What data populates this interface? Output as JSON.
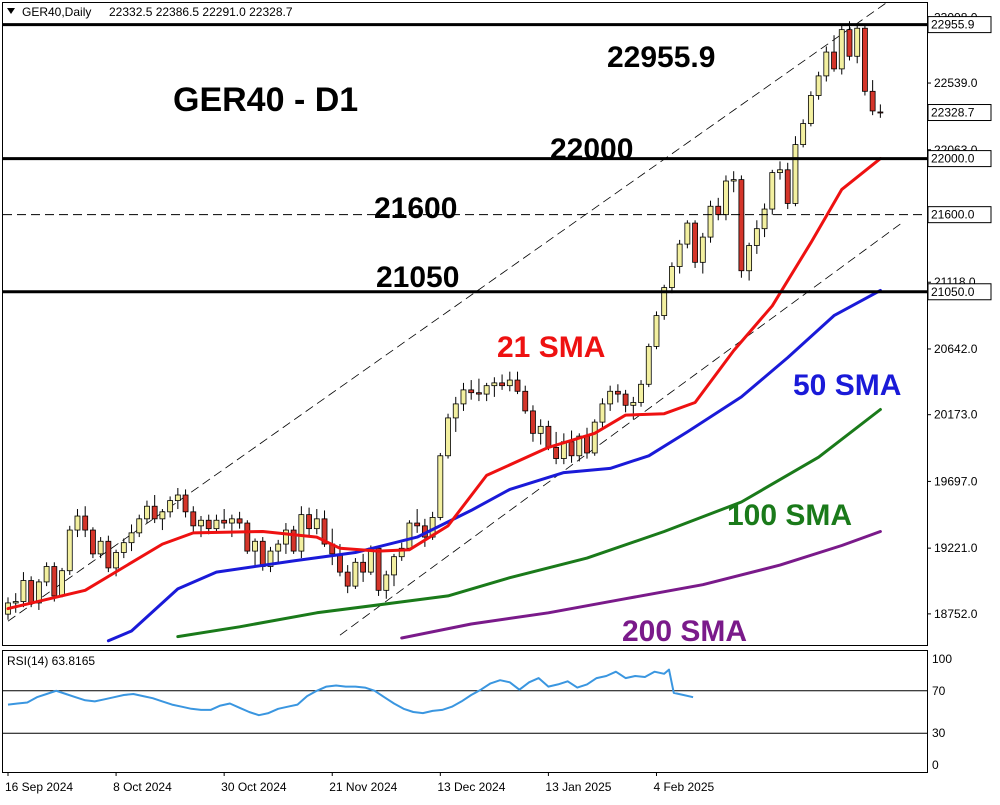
{
  "header": {
    "symbol": "GER40,Daily",
    "ohlc": "22332.5 22386.5 22291.0 22328.7"
  },
  "annotations": {
    "title": "GER40 - D1",
    "level_22955": "22955.9",
    "level_22000": "22000",
    "level_21600": "21600",
    "level_21050": "21050",
    "sma21": "21 SMA",
    "sma50": "50 SMA",
    "sma100": "100 SMA",
    "sma200": "200 SMA"
  },
  "colors": {
    "up": "#f3f0a0",
    "down": "#d4352a",
    "sma21": "#ee1111",
    "sma50": "#1a1ad8",
    "sma100": "#1a7a1a",
    "sma200": "#7a1a8a",
    "rsi": "#3a96e0"
  },
  "chart_data": [
    {
      "type": "candlestick",
      "y_range": [
        18530,
        23110
      ],
      "x_labels": [
        "16 Sep 2024",
        "8 Oct 2024",
        "30 Oct 2024",
        "21 Nov 2024",
        "13 Dec 2024",
        "13 Jan 2025",
        "4 Feb 2025"
      ],
      "y_ticks": [
        "23008.0",
        "22539.0",
        "22063.0",
        "21118.0",
        "20642.0",
        "20173.0",
        "19697.0",
        "19221.0",
        "18752.0"
      ],
      "price_labels": [
        "22955.9",
        "22328.7",
        "22000.0",
        "21600.0",
        "21050.0"
      ],
      "levels": [
        22955.9,
        22000,
        21600,
        21050
      ],
      "candles": [
        [
          18750,
          18870,
          18710,
          18830
        ],
        [
          18830,
          18900,
          18760,
          18840
        ],
        [
          18840,
          19050,
          18800,
          18990
        ],
        [
          18990,
          19020,
          18800,
          18830
        ],
        [
          18830,
          19000,
          18780,
          18980
        ],
        [
          18980,
          19120,
          18950,
          19090
        ],
        [
          19090,
          19120,
          18840,
          18880
        ],
        [
          18880,
          19080,
          18870,
          19060
        ],
        [
          19060,
          19380,
          19030,
          19350
        ],
        [
          19350,
          19500,
          19300,
          19450
        ],
        [
          19450,
          19520,
          19300,
          19350
        ],
        [
          19350,
          19370,
          19150,
          19180
        ],
        [
          19180,
          19300,
          19150,
          19270
        ],
        [
          19270,
          19310,
          19050,
          19080
        ],
        [
          19080,
          19210,
          19020,
          19190
        ],
        [
          19190,
          19290,
          19150,
          19260
        ],
        [
          19260,
          19390,
          19200,
          19330
        ],
        [
          19330,
          19460,
          19300,
          19430
        ],
        [
          19430,
          19560,
          19400,
          19520
        ],
        [
          19520,
          19600,
          19400,
          19430
        ],
        [
          19430,
          19500,
          19350,
          19480
        ],
        [
          19480,
          19590,
          19440,
          19560
        ],
        [
          19560,
          19650,
          19500,
          19600
        ],
        [
          19600,
          19640,
          19440,
          19480
        ],
        [
          19480,
          19520,
          19340,
          19380
        ],
        [
          19380,
          19450,
          19300,
          19420
        ],
        [
          19420,
          19460,
          19320,
          19360
        ],
        [
          19360,
          19460,
          19340,
          19420
        ],
        [
          19420,
          19500,
          19360,
          19400
        ],
        [
          19400,
          19460,
          19300,
          19430
        ],
        [
          19430,
          19480,
          19360,
          19400
        ],
        [
          19400,
          19420,
          19180,
          19200
        ],
        [
          19200,
          19290,
          19100,
          19270
        ],
        [
          19270,
          19300,
          19060,
          19090
        ],
        [
          19090,
          19230,
          19050,
          19200
        ],
        [
          19200,
          19280,
          19120,
          19250
        ],
        [
          19250,
          19400,
          19180,
          19350
        ],
        [
          19350,
          19380,
          19180,
          19200
        ],
        [
          19200,
          19520,
          19150,
          19460
        ],
        [
          19460,
          19510,
          19300,
          19360
        ],
        [
          19360,
          19500,
          19320,
          19430
        ],
        [
          19430,
          19490,
          19230,
          19250
        ],
        [
          19250,
          19360,
          19100,
          19180
        ],
        [
          19180,
          19250,
          19020,
          19050
        ],
        [
          19050,
          19100,
          18900,
          18950
        ],
        [
          18950,
          19150,
          18930,
          19120
        ],
        [
          19120,
          19180,
          18980,
          19050
        ],
        [
          19050,
          19240,
          19030,
          19220
        ],
        [
          19220,
          19240,
          18880,
          18920
        ],
        [
          18920,
          19060,
          18860,
          19030
        ],
        [
          19030,
          19180,
          18950,
          19160
        ],
        [
          19160,
          19260,
          19130,
          19220
        ],
        [
          19220,
          19420,
          19200,
          19400
        ],
        [
          19400,
          19500,
          19330,
          19380
        ],
        [
          19380,
          19430,
          19230,
          19300
        ],
        [
          19300,
          19480,
          19280,
          19440
        ],
        [
          19440,
          19900,
          19420,
          19880
        ],
        [
          19880,
          20180,
          19860,
          20150
        ],
        [
          20150,
          20300,
          20050,
          20250
        ],
        [
          20250,
          20400,
          20200,
          20350
        ],
        [
          20350,
          20420,
          20280,
          20330
        ],
        [
          20330,
          20430,
          20270,
          20320
        ],
        [
          20320,
          20400,
          20270,
          20380
        ],
        [
          20380,
          20440,
          20300,
          20400
        ],
        [
          20400,
          20460,
          20350,
          20380
        ],
        [
          20380,
          20480,
          20340,
          20420
        ],
        [
          20420,
          20480,
          20320,
          20340
        ],
        [
          20340,
          20380,
          20180,
          20200
        ],
        [
          20200,
          20240,
          19980,
          20040
        ],
        [
          20040,
          20140,
          19960,
          20090
        ],
        [
          20090,
          20130,
          19920,
          19940
        ],
        [
          19940,
          20050,
          19820,
          19860
        ],
        [
          19860,
          20040,
          19820,
          19980
        ],
        [
          19980,
          20060,
          19830,
          19880
        ],
        [
          19880,
          20040,
          19840,
          20020
        ],
        [
          20020,
          20080,
          19860,
          19900
        ],
        [
          19900,
          20140,
          19880,
          20120
        ],
        [
          20120,
          20290,
          20080,
          20250
        ],
        [
          20250,
          20380,
          20200,
          20340
        ],
        [
          20340,
          20390,
          20260,
          20320
        ],
        [
          20320,
          20350,
          20190,
          20240
        ],
        [
          20240,
          20300,
          20140,
          20260
        ],
        [
          20260,
          20420,
          20230,
          20390
        ],
        [
          20390,
          20680,
          20370,
          20660
        ],
        [
          20660,
          20910,
          20640,
          20880
        ],
        [
          20880,
          21100,
          20850,
          21080
        ],
        [
          21080,
          21260,
          21040,
          21230
        ],
        [
          21230,
          21420,
          21180,
          21390
        ],
        [
          21390,
          21560,
          21360,
          21540
        ],
        [
          21540,
          21560,
          21220,
          21260
        ],
        [
          21260,
          21470,
          21180,
          21440
        ],
        [
          21440,
          21700,
          21400,
          21660
        ],
        [
          21660,
          21720,
          21560,
          21600
        ],
        [
          21600,
          21880,
          21560,
          21840
        ],
        [
          21840,
          21910,
          21760,
          21850
        ],
        [
          21850,
          21880,
          21150,
          21200
        ],
        [
          21200,
          21400,
          21130,
          21380
        ],
        [
          21380,
          21560,
          21320,
          21500
        ],
        [
          21500,
          21680,
          21440,
          21640
        ],
        [
          21640,
          21920,
          21600,
          21900
        ],
        [
          21900,
          21980,
          21850,
          21920
        ],
        [
          21920,
          21970,
          21640,
          21680
        ],
        [
          21680,
          22160,
          21660,
          22100
        ],
        [
          22100,
          22280,
          22080,
          22250
        ],
        [
          22250,
          22480,
          22230,
          22450
        ],
        [
          22450,
          22620,
          22420,
          22590
        ],
        [
          22590,
          22800,
          22550,
          22760
        ],
        [
          22760,
          22880,
          22620,
          22640
        ],
        [
          22640,
          22960,
          22600,
          22920
        ],
        [
          22920,
          22980,
          22700,
          22730
        ],
        [
          22730,
          22960,
          22680,
          22930
        ],
        [
          22930,
          22950,
          22450,
          22480
        ],
        [
          22480,
          22560,
          22310,
          22340
        ],
        [
          22332.5,
          22386.5,
          22291,
          22328.7
        ]
      ],
      "sma21": [
        [
          0,
          18790
        ],
        [
          10,
          18920
        ],
        [
          20,
          19250
        ],
        [
          24,
          19330
        ],
        [
          33,
          19340
        ],
        [
          40,
          19300
        ],
        [
          43,
          19220
        ],
        [
          48,
          19200
        ],
        [
          52,
          19210
        ],
        [
          57,
          19380
        ],
        [
          62,
          19740
        ],
        [
          70,
          19940
        ],
        [
          76,
          20040
        ],
        [
          80,
          20170
        ],
        [
          85,
          20180
        ],
        [
          89,
          20260
        ],
        [
          94,
          20630
        ],
        [
          99,
          20950
        ],
        [
          104,
          21400
        ],
        [
          108,
          21780
        ],
        [
          113,
          22000
        ]
      ],
      "sma50": [
        [
          13,
          18560
        ],
        [
          16,
          18630
        ],
        [
          22,
          18930
        ],
        [
          27,
          19050
        ],
        [
          37,
          19130
        ],
        [
          45,
          19190
        ],
        [
          53,
          19300
        ],
        [
          60,
          19490
        ],
        [
          65,
          19640
        ],
        [
          72,
          19760
        ],
        [
          78,
          19790
        ],
        [
          83,
          19880
        ],
        [
          88,
          20050
        ],
        [
          95,
          20300
        ],
        [
          101,
          20580
        ],
        [
          107,
          20880
        ],
        [
          113,
          21060
        ]
      ],
      "sma100": [
        [
          22,
          18590
        ],
        [
          30,
          18660
        ],
        [
          40,
          18760
        ],
        [
          50,
          18830
        ],
        [
          57,
          18880
        ],
        [
          65,
          19010
        ],
        [
          75,
          19150
        ],
        [
          85,
          19340
        ],
        [
          95,
          19550
        ],
        [
          105,
          19870
        ],
        [
          113,
          20210
        ]
      ],
      "sma200": [
        [
          51,
          18580
        ],
        [
          60,
          18680
        ],
        [
          70,
          18760
        ],
        [
          80,
          18860
        ],
        [
          90,
          18960
        ],
        [
          100,
          19100
        ],
        [
          108,
          19240
        ],
        [
          113,
          19340
        ]
      ],
      "channel_upper": [
        [
          0,
          18700
        ],
        [
          114,
          23120
        ]
      ],
      "channel_lower": [
        [
          43,
          18600
        ],
        [
          116,
          21550
        ]
      ]
    },
    {
      "type": "line",
      "title": "RSI(14) 63.8165",
      "y_range": [
        0,
        100
      ],
      "y_ticks": [
        "100",
        "70",
        "30",
        "0"
      ],
      "levels": [
        70,
        30
      ],
      "values": [
        [
          0,
          57
        ],
        [
          2,
          58
        ],
        [
          4,
          59
        ],
        [
          6,
          64
        ],
        [
          8,
          67
        ],
        [
          10,
          70
        ],
        [
          12,
          67
        ],
        [
          14,
          64
        ],
        [
          16,
          61
        ],
        [
          18,
          60
        ],
        [
          20,
          62
        ],
        [
          22,
          64
        ],
        [
          24,
          66
        ],
        [
          26,
          67
        ],
        [
          28,
          65
        ],
        [
          30,
          63
        ],
        [
          32,
          60
        ],
        [
          34,
          57
        ],
        [
          36,
          55
        ],
        [
          38,
          53
        ],
        [
          40,
          52
        ],
        [
          42,
          52
        ],
        [
          44,
          56
        ],
        [
          46,
          58
        ],
        [
          48,
          54
        ],
        [
          50,
          50
        ],
        [
          52,
          47
        ],
        [
          54,
          49
        ],
        [
          56,
          53
        ],
        [
          58,
          55
        ],
        [
          60,
          57
        ],
        [
          62,
          65
        ],
        [
          64,
          70
        ],
        [
          66,
          74
        ],
        [
          68,
          75
        ],
        [
          70,
          74
        ],
        [
          72,
          74
        ],
        [
          74,
          73
        ],
        [
          76,
          70
        ],
        [
          78,
          64
        ],
        [
          80,
          58
        ],
        [
          82,
          53
        ],
        [
          84,
          50
        ],
        [
          86,
          49
        ],
        [
          88,
          51
        ],
        [
          90,
          52
        ],
        [
          92,
          55
        ],
        [
          94,
          60
        ],
        [
          96,
          66
        ],
        [
          98,
          71
        ],
        [
          100,
          77
        ],
        [
          102,
          80
        ],
        [
          104,
          78
        ],
        [
          106,
          71
        ],
        [
          108,
          78
        ],
        [
          110,
          82
        ],
        [
          112,
          74
        ],
        [
          114,
          76
        ],
        [
          116,
          79
        ],
        [
          118,
          73
        ],
        [
          120,
          76
        ],
        [
          122,
          82
        ],
        [
          124,
          84
        ],
        [
          126,
          88
        ],
        [
          128,
          82
        ],
        [
          130,
          84
        ],
        [
          132,
          83
        ],
        [
          134,
          88
        ],
        [
          136,
          86
        ],
        [
          137,
          90
        ],
        [
          138,
          68
        ],
        [
          140,
          66
        ],
        [
          142,
          64
        ]
      ]
    }
  ]
}
